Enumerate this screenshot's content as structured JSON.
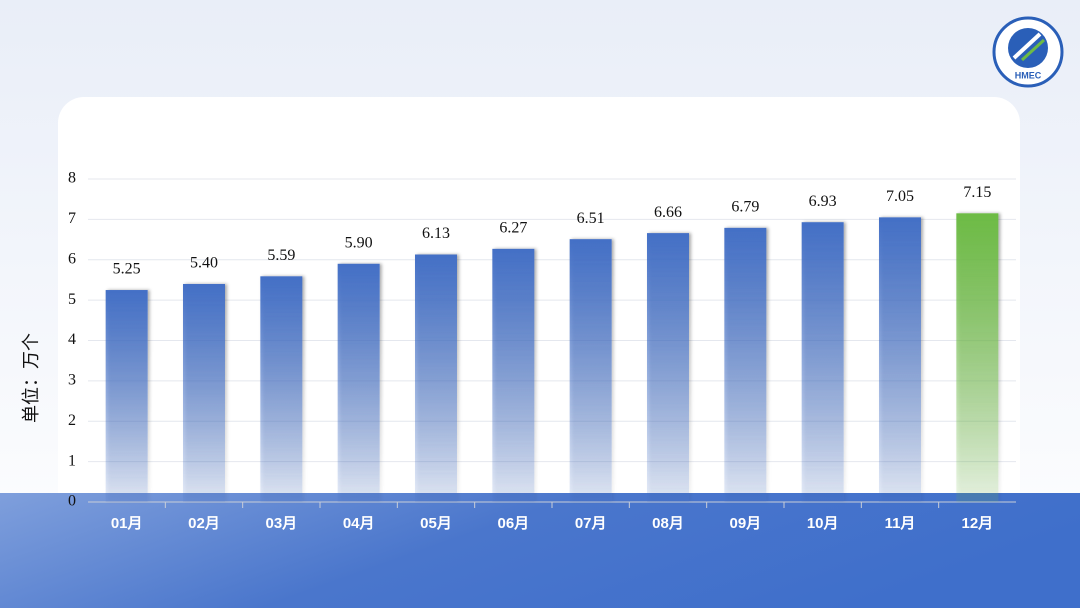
{
  "chart_data": {
    "type": "bar",
    "y_label": "单位：万个",
    "categories": [
      "01月",
      "02月",
      "03月",
      "04月",
      "05月",
      "06月",
      "07月",
      "08月",
      "09月",
      "10月",
      "11月",
      "12月"
    ],
    "values": [
      5.25,
      5.4,
      5.59,
      5.9,
      6.13,
      6.27,
      6.51,
      6.66,
      6.79,
      6.93,
      7.05,
      7.15
    ],
    "value_labels": [
      "5.25",
      "5.40",
      "5.59",
      "5.90",
      "6.13",
      "6.27",
      "6.51",
      "6.66",
      "6.79",
      "6.93",
      "7.05",
      "7.15"
    ],
    "colors": [
      "#4470c6",
      "#4470c6",
      "#4470c6",
      "#4470c6",
      "#4470c6",
      "#4470c6",
      "#4470c6",
      "#4470c6",
      "#4470c6",
      "#4470c6",
      "#4470c6",
      "#6dbb45"
    ],
    "ylim": [
      0,
      8
    ],
    "yticks": [
      0,
      1,
      2,
      3,
      4,
      5,
      6,
      7,
      8
    ],
    "grid": true
  },
  "logo_text": "HMEC"
}
